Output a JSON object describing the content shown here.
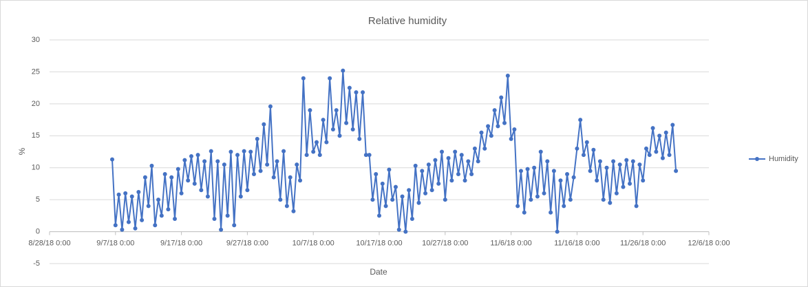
{
  "chart_data": {
    "type": "line",
    "title": "Relative humidity",
    "x_label": "Date",
    "y_label": "%",
    "xlim": [
      43340,
      43440
    ],
    "xticks": [
      {
        "value": 43340,
        "label": "8/28/18 0:00"
      },
      {
        "value": 43350,
        "label": "9/7/18 0:00"
      },
      {
        "value": 43360,
        "label": "9/17/18 0:00"
      },
      {
        "value": 43370,
        "label": "9/27/18 0:00"
      },
      {
        "value": 43380,
        "label": "10/7/18 0:00"
      },
      {
        "value": 43390,
        "label": "10/17/18 0:00"
      },
      {
        "value": 43400,
        "label": "10/27/18 0:00"
      },
      {
        "value": 43410,
        "label": "11/6/18 0:00"
      },
      {
        "value": 43420,
        "label": "11/16/18 0:00"
      },
      {
        "value": 43430,
        "label": "11/26/18 0:00"
      },
      {
        "value": 43440,
        "label": "12/6/18 0:00"
      }
    ],
    "ylim": [
      -5,
      30
    ],
    "yticks": [
      -5,
      0,
      5,
      10,
      15,
      20,
      25,
      30
    ],
    "grid": true,
    "legend": "right",
    "markers": true,
    "x": [
      43349.5,
      43350,
      43350.5,
      43351,
      43351.5,
      43352,
      43352.5,
      43353,
      43353.5,
      43354,
      43354.5,
      43355,
      43355.5,
      43356,
      43356.5,
      43357,
      43357.5,
      43358,
      43358.5,
      43359,
      43359.5,
      43360,
      43360.5,
      43361,
      43361.5,
      43362,
      43362.5,
      43363,
      43363.5,
      43364,
      43364.5,
      43365,
      43365.5,
      43366,
      43366.5,
      43367,
      43367.5,
      43368,
      43368.5,
      43369,
      43369.5,
      43370,
      43370.5,
      43371,
      43371.5,
      43372,
      43372.5,
      43373,
      43373.5,
      43374,
      43374.5,
      43375,
      43375.5,
      43376,
      43376.5,
      43377,
      43377.5,
      43378,
      43378.5,
      43379,
      43379.5,
      43380,
      43380.5,
      43381,
      43381.5,
      43382,
      43382.5,
      43383,
      43383.5,
      43384,
      43384.5,
      43385,
      43385.5,
      43386,
      43386.5,
      43387,
      43387.5,
      43388,
      43388.5,
      43389,
      43389.5,
      43390,
      43390.5,
      43391,
      43391.5,
      43392,
      43392.5,
      43393,
      43393.5,
      43394,
      43394.5,
      43395,
      43395.5,
      43396,
      43396.5,
      43397,
      43397.5,
      43398,
      43398.5,
      43399,
      43399.5,
      43400,
      43400.5,
      43401,
      43401.5,
      43402,
      43402.5,
      43403,
      43403.5,
      43404,
      43404.5,
      43405,
      43405.5,
      43406,
      43406.5,
      43407,
      43407.5,
      43408,
      43408.5,
      43409,
      43409.5,
      43410,
      43410.5,
      43411,
      43411.5,
      43412,
      43412.5,
      43413,
      43413.5,
      43414,
      43414.5,
      43415,
      43415.5,
      43416,
      43416.5,
      43417,
      43417.5,
      43418,
      43418.5,
      43419,
      43419.5,
      43420,
      43420.5,
      43421,
      43421.5,
      43422,
      43422.5,
      43423,
      43423.5,
      43424,
      43424.5,
      43425,
      43425.5,
      43426,
      43426.5,
      43427,
      43427.5,
      43428,
      43428.5,
      43429,
      43429.5,
      43430,
      43430.5,
      43431,
      43431.5,
      43432,
      43432.5,
      43433,
      43433.5,
      43434,
      43434.5,
      43435
    ],
    "series": [
      {
        "name": "Humidity",
        "color": "#4472c4",
        "values": [
          11.3,
          1.0,
          5.8,
          0.3,
          6.0,
          1.5,
          5.5,
          0.5,
          6.2,
          1.8,
          8.5,
          4.0,
          10.3,
          1.0,
          5.0,
          2.5,
          9.0,
          3.5,
          8.5,
          2.0,
          9.8,
          6.0,
          11.2,
          8.0,
          11.8,
          7.5,
          12.0,
          6.5,
          11.0,
          5.5,
          12.6,
          2.0,
          11.0,
          0.3,
          10.5,
          2.5,
          12.5,
          1.0,
          12.0,
          5.5,
          12.6,
          6.5,
          12.5,
          9.0,
          14.5,
          9.5,
          16.8,
          10.5,
          19.6,
          8.5,
          11.0,
          5.0,
          12.6,
          4.0,
          8.5,
          3.2,
          10.5,
          8.0,
          24.0,
          12.0,
          19.0,
          12.5,
          14.0,
          12.0,
          17.5,
          14.0,
          24.0,
          16.0,
          19.0,
          15.0,
          25.2,
          17.0,
          22.5,
          16.0,
          21.8,
          14.5,
          21.8,
          12.0,
          12.0,
          5.0,
          9.0,
          2.5,
          7.5,
          4.0,
          9.7,
          5.0,
          7.0,
          0.3,
          5.5,
          0.0,
          6.5,
          2.0,
          10.3,
          4.5,
          9.5,
          6.0,
          10.5,
          6.5,
          11.2,
          7.5,
          12.5,
          5.0,
          11.5,
          8.0,
          12.5,
          9.0,
          12.0,
          8.0,
          11.0,
          9.0,
          13.0,
          11.0,
          15.5,
          13.0,
          16.5,
          15.0,
          19.0,
          16.5,
          21.0,
          17.0,
          24.4,
          14.5,
          16.0,
          4.0,
          9.5,
          3.0,
          9.8,
          5.0,
          10.0,
          5.5,
          12.5,
          6.0,
          11.0,
          3.0,
          9.5,
          0.0,
          8.0,
          4.0,
          9.0,
          5.0,
          8.5,
          13.0,
          17.5,
          12.0,
          14.0,
          9.5,
          12.8,
          8.0,
          11.0,
          5.0,
          10.0,
          4.5,
          11.0,
          6.0,
          10.5,
          7.0,
          11.2,
          7.5,
          11.0,
          4.0,
          10.5,
          8.0,
          13.0,
          12.0,
          16.2,
          12.5,
          15.0,
          11.5,
          15.5,
          12.0,
          16.7,
          9.5
        ]
      }
    ]
  }
}
